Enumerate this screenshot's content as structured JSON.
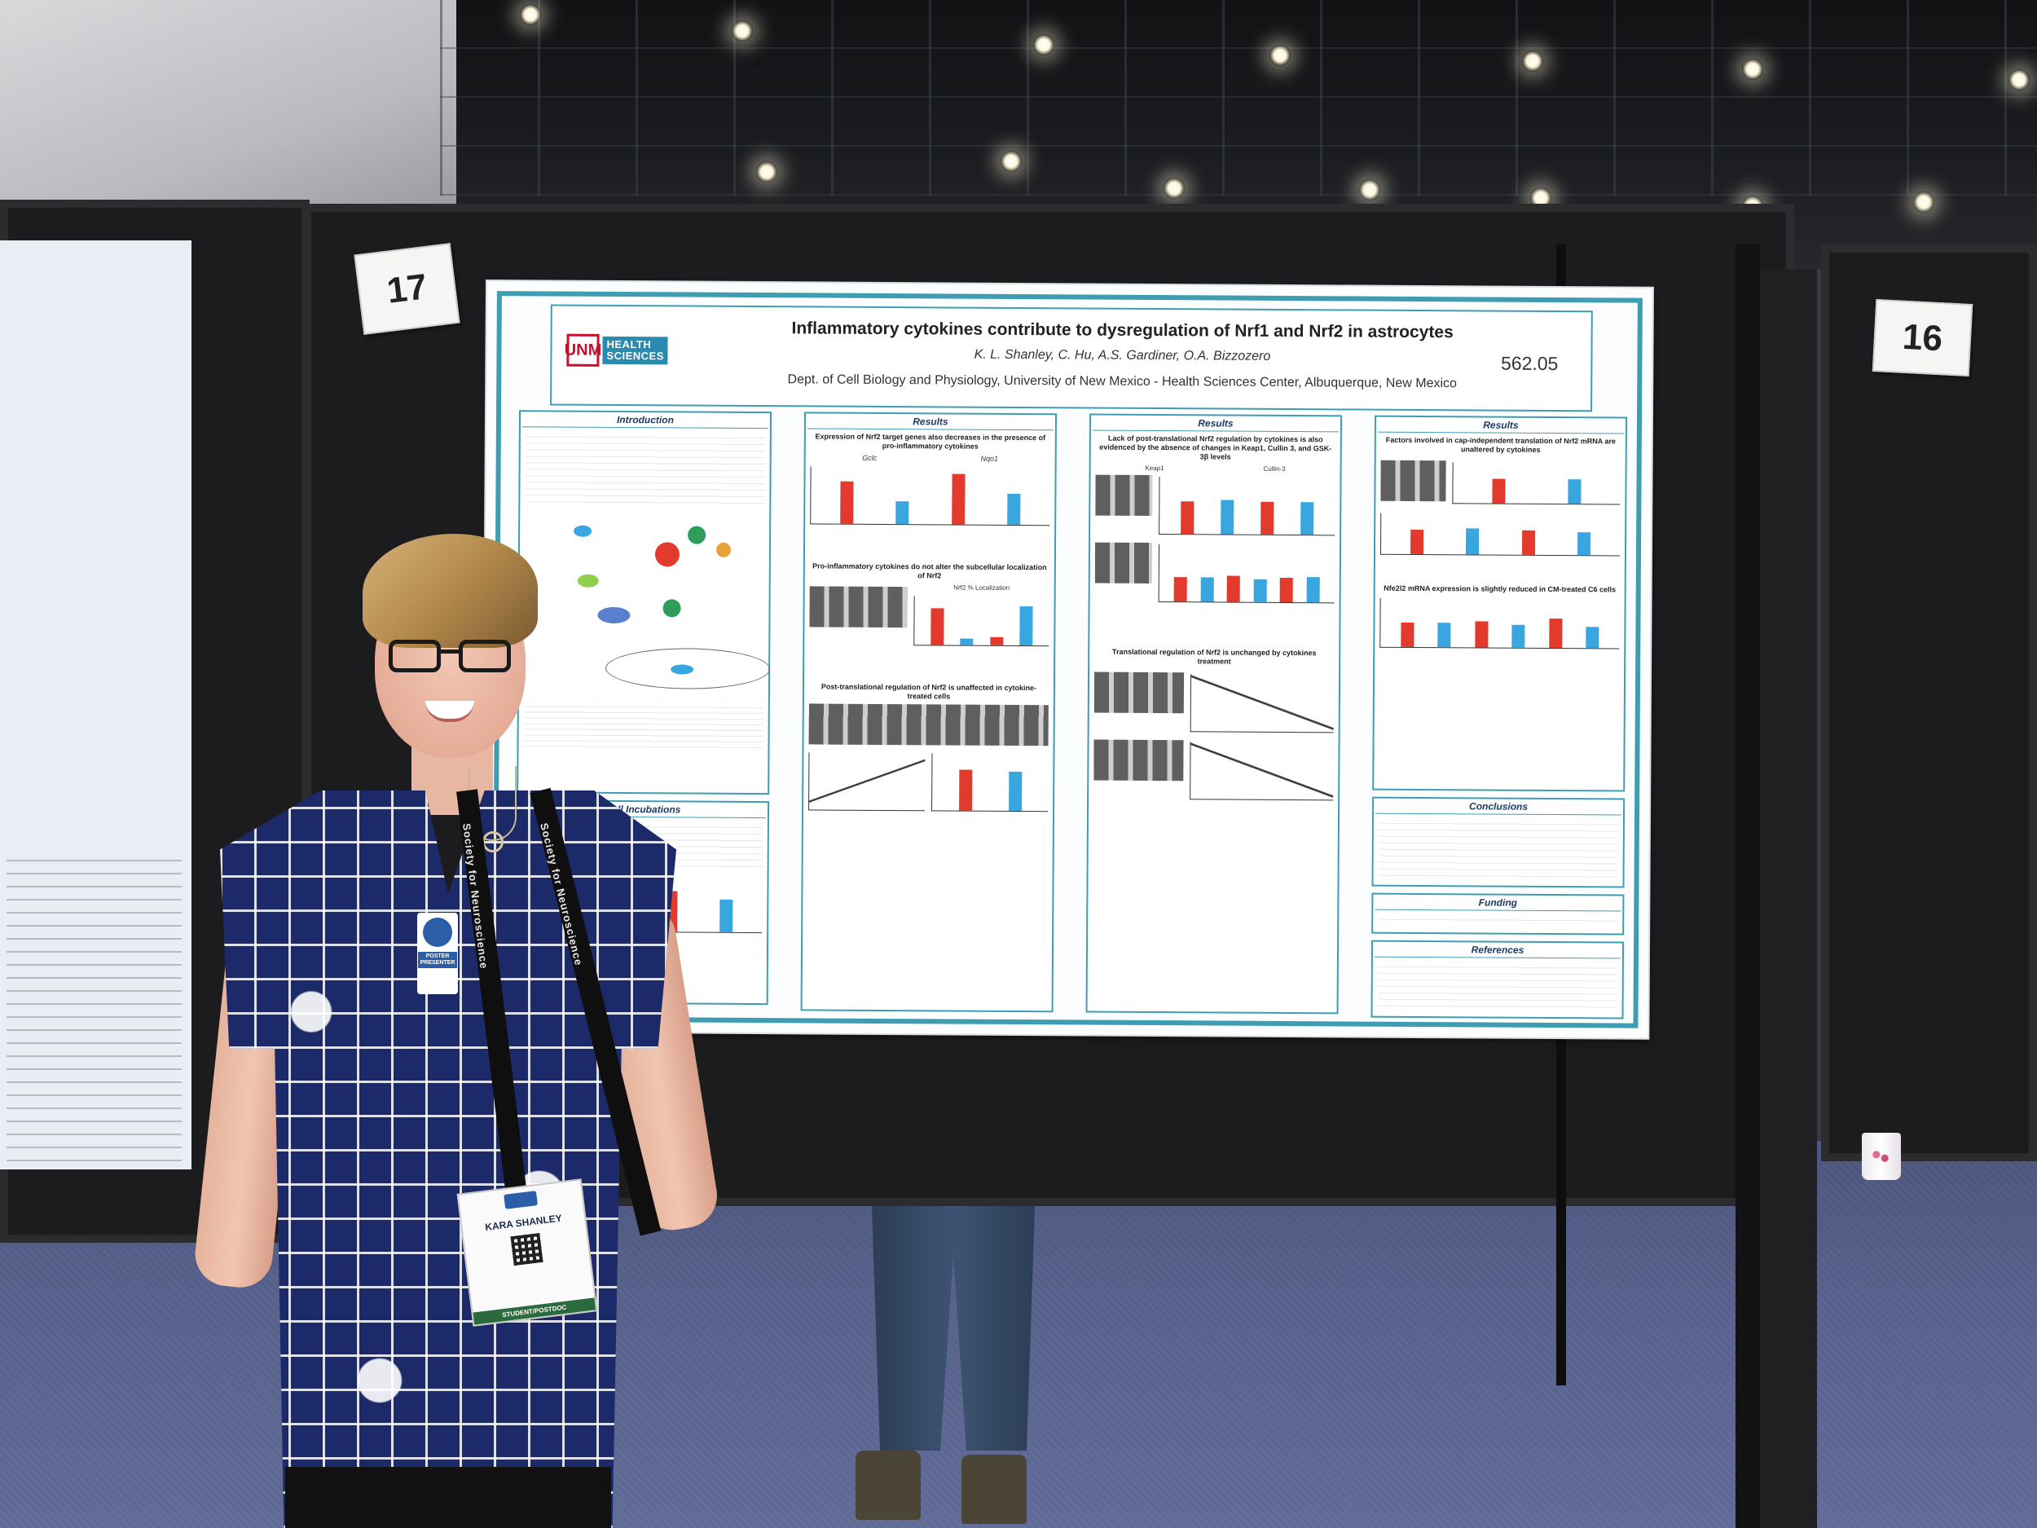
{
  "scene": {
    "colors": {
      "poster_border": "#3f9db2",
      "bar_control": "#e33a2e",
      "bar_treated": "#3aa6e0",
      "shirt": "#1c2a6a"
    }
  },
  "board_numbers": {
    "left": "17",
    "right": "16"
  },
  "poster": {
    "logo": {
      "mark": "UNM",
      "line1": "HEALTH",
      "line2": "SCIENCES"
    },
    "title": "Inflammatory cytokines contribute to dysregulation of Nrf1 and Nrf2 in astrocytes",
    "authors": "K. L. Shanley, C. Hu, A.S. Gardiner, O.A. Bizzozero",
    "department": "Dept. of Cell Biology and Physiology, University of New Mexico - Health Sciences Center, Albuquerque, New Mexico",
    "number": "562.05",
    "col1": {
      "intro_title": "Introduction",
      "cell_title": "Cell Incubations"
    },
    "col2": {
      "results_title": "Results",
      "sub1": "Expression of Nrf2 target genes also decreases in the presence of pro-inflammatory cytokines",
      "gene1": "Gclc",
      "gene2": "Nqo1",
      "sub2": "Pro-inflammatory cytokines do not alter the subcellular localization of Nrf2",
      "localization_label": "Nrf2 % Localization",
      "sub3": "Post-translational regulation of Nrf2 is unaffected in cytokine-treated cells"
    },
    "col3": {
      "results_title": "Results",
      "sub1": "Lack of post-translational Nrf2 regulation by cytokines is also evidenced by the absence of changes in Keap1, Cullin 3, and GSK-3β levels",
      "keap": "Keap1",
      "cullin": "Cullin-3",
      "sub2": "Translational regulation of Nrf2 is unchanged by cytokines treatment"
    },
    "col4": {
      "results_title": "Results",
      "sub1": "Factors involved in cap-independent translation of Nrf2 mRNA are unaltered by cytokines",
      "sub2": "Nfe2l2 mRNA expression is slightly reduced in CM-treated C6 cells",
      "conclusions_title": "Conclusions",
      "funding_title": "Funding",
      "references_title": "References"
    }
  },
  "attendee": {
    "badge_name": "KARA SHANLEY",
    "ribbon": "POSTER PRESENTER",
    "badge_strip": "STUDENT/POSTDOC",
    "lanyard_text": "Society for Neuroscience"
  }
}
